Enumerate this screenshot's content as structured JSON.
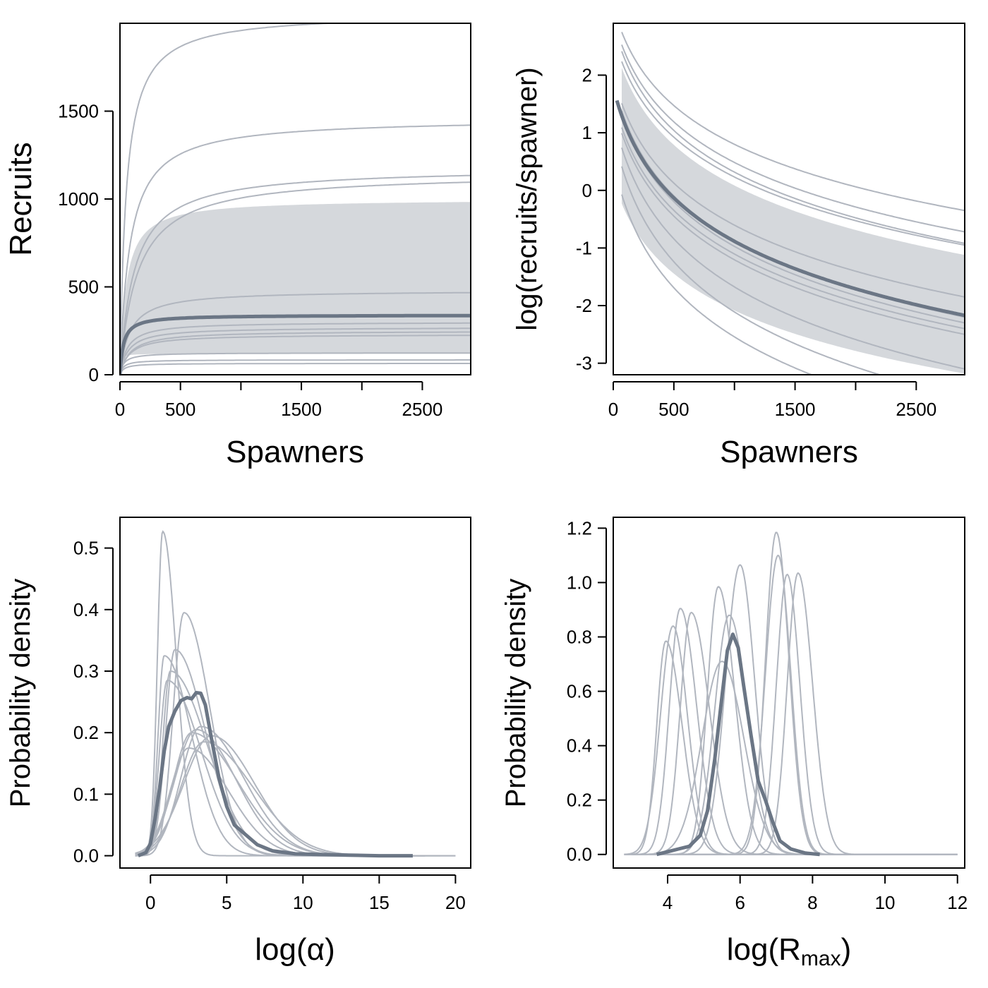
{
  "colors": {
    "posterior_median": "#6b7685",
    "population": "#b1b6bf",
    "credible_band": "#d5d8dc"
  },
  "chart_data": [
    {
      "id": "recruits",
      "type": "line",
      "xlabel": "Spawners",
      "ylabel": "Recruits",
      "xlim": [
        0,
        2900
      ],
      "ylim": [
        0,
        2000
      ],
      "xticks": [
        0,
        500,
        1000,
        1500,
        2000,
        2500
      ],
      "xtick_labels": [
        "0",
        "500",
        "",
        "1500",
        "",
        "2500"
      ],
      "yticks": [
        0,
        500,
        1000,
        1500
      ],
      "ytick_labels": [
        "0",
        "500",
        "1000",
        "1500"
      ],
      "model": "beverton-holt",
      "band": {
        "alpha": 20,
        "rmax": [
          120,
          1000
        ]
      },
      "median": {
        "alpha": 12,
        "rmax": 340
      },
      "populations": [
        {
          "alpha": 40,
          "rmax": 2060
        },
        {
          "alpha": 18,
          "rmax": 1460
        },
        {
          "alpha": 10,
          "rmax": 1180
        },
        {
          "alpha": 8,
          "rmax": 1150
        },
        {
          "alpha": 6,
          "rmax": 480
        },
        {
          "alpha": 5,
          "rmax": 300
        },
        {
          "alpha": 4,
          "rmax": 270
        },
        {
          "alpha": 3,
          "rmax": 250
        },
        {
          "alpha": 3,
          "rmax": 230
        },
        {
          "alpha": 4,
          "rmax": 125
        },
        {
          "alpha": 3,
          "rmax": 85
        },
        {
          "alpha": 2,
          "rmax": 65
        }
      ]
    },
    {
      "id": "log-rps",
      "type": "line",
      "xlabel": "Spawners",
      "ylabel": "log(recruits/spawner)",
      "xlim": [
        0,
        2900
      ],
      "ylim": [
        -3.2,
        2.9
      ],
      "xticks": [
        0,
        500,
        1000,
        1500,
        2000,
        2500
      ],
      "xtick_labels": [
        "0",
        "500",
        "",
        "1500",
        "",
        "2500"
      ],
      "yticks": [
        -3,
        -2,
        -1,
        0,
        1,
        2
      ],
      "ytick_labels": [
        "-3",
        "-2",
        "-1",
        "0",
        "1",
        "2"
      ],
      "band": {
        "start_s": 70,
        "upper": [
          2.6,
          -1.12
        ],
        "lower": [
          0.2,
          -3.18
        ]
      },
      "median": {
        "start_s": 30,
        "a": 1.8,
        "b": -2.17
      },
      "populations": [
        {
          "a": 3.2,
          "b": -0.35
        },
        {
          "a": 3.0,
          "b": -0.72
        },
        {
          "a": 2.9,
          "b": -0.92
        },
        {
          "a": 2.7,
          "b": -0.95
        },
        {
          "a": 2.0,
          "b": -1.85
        },
        {
          "a": 1.9,
          "b": -2.2
        },
        {
          "a": 1.8,
          "b": -2.3
        },
        {
          "a": 1.6,
          "b": -2.4
        },
        {
          "a": 1.5,
          "b": -2.5
        },
        {
          "a": 1.3,
          "b": -3.1
        },
        {
          "a": 1.0,
          "b": -3.6
        },
        {
          "a": 0.5,
          "b": -4.0
        }
      ]
    },
    {
      "id": "log-alpha-density",
      "type": "line",
      "xlabel": "log(α)",
      "ylabel": "Probability density",
      "xlim": [
        -2,
        21
      ],
      "ylim": [
        -0.02,
        0.55
      ],
      "xticks": [
        0,
        5,
        10,
        15,
        20
      ],
      "xtick_labels": [
        "0",
        "5",
        "10",
        "15",
        "20"
      ],
      "yticks": [
        0,
        0.1,
        0.2,
        0.3,
        0.4,
        0.5
      ],
      "ytick_labels": [
        "0.0",
        "0.1",
        "0.2",
        "0.3",
        "0.4",
        "0.5"
      ],
      "median": {
        "range": [
          -0.8,
          17.2
        ],
        "points": [
          [
            -0.8,
            0.0
          ],
          [
            -0.3,
            0.005
          ],
          [
            0.0,
            0.02
          ],
          [
            0.3,
            0.06
          ],
          [
            0.6,
            0.11
          ],
          [
            0.9,
            0.17
          ],
          [
            1.2,
            0.21
          ],
          [
            1.6,
            0.235
          ],
          [
            2.0,
            0.252
          ],
          [
            2.4,
            0.257
          ],
          [
            2.7,
            0.255
          ],
          [
            3.0,
            0.265
          ],
          [
            3.3,
            0.264
          ],
          [
            3.6,
            0.245
          ],
          [
            4.0,
            0.19
          ],
          [
            4.5,
            0.125
          ],
          [
            5.0,
            0.08
          ],
          [
            5.5,
            0.05
          ],
          [
            6.2,
            0.035
          ],
          [
            7.0,
            0.018
          ],
          [
            8.0,
            0.008
          ],
          [
            9.5,
            0.003
          ],
          [
            11.0,
            0.002
          ],
          [
            13.0,
            0.001
          ],
          [
            15.0,
            0.0
          ],
          [
            17.2,
            0.0
          ]
        ]
      },
      "populations": [
        {
          "range": [
            -1,
            15
          ],
          "peak": 0.8,
          "height": 0.527,
          "left": 0.35,
          "right": 0.9
        },
        {
          "range": [
            -1,
            16
          ],
          "peak": 2.2,
          "height": 0.395,
          "left": 0.7,
          "right": 1.7
        },
        {
          "range": [
            -1,
            16
          ],
          "peak": 0.9,
          "height": 0.325,
          "left": 0.4,
          "right": 1.8
        },
        {
          "range": [
            -1,
            16
          ],
          "peak": 1.6,
          "height": 0.335,
          "left": 0.6,
          "right": 2.0
        },
        {
          "range": [
            -1,
            16
          ],
          "peak": 1.3,
          "height": 0.3,
          "left": 0.5,
          "right": 2.4
        },
        {
          "range": [
            -1,
            16
          ],
          "peak": 1.1,
          "height": 0.285,
          "left": 0.5,
          "right": 2.2
        },
        {
          "range": [
            -1,
            18
          ],
          "peak": 3.3,
          "height": 0.21,
          "left": 1.3,
          "right": 2.8
        },
        {
          "range": [
            -1,
            18
          ],
          "peak": 3.0,
          "height": 0.205,
          "left": 1.4,
          "right": 2.6
        },
        {
          "range": [
            -1,
            18
          ],
          "peak": 2.7,
          "height": 0.2,
          "left": 1.2,
          "right": 3.0
        },
        {
          "range": [
            -1,
            19
          ],
          "peak": 3.5,
          "height": 0.185,
          "left": 1.5,
          "right": 3.2
        },
        {
          "range": [
            -1,
            20
          ],
          "peak": 2.5,
          "height": 0.175,
          "left": 1.2,
          "right": 2.6
        },
        {
          "range": [
            -1,
            20
          ],
          "peak": 4.0,
          "height": 0.195,
          "left": 1.8,
          "right": 2.8
        }
      ]
    },
    {
      "id": "log-rmax-density",
      "type": "line",
      "xlabel": "log(R",
      "xlabel_sub": "max",
      "xlabel_close": ")",
      "ylabel": "Probability density",
      "xlim": [
        2.5,
        12.2
      ],
      "ylim": [
        -0.05,
        1.24
      ],
      "xticks": [
        4,
        6,
        8,
        10,
        12
      ],
      "xtick_labels": [
        "4",
        "6",
        "8",
        "10",
        "12"
      ],
      "yticks": [
        0,
        0.2,
        0.4,
        0.6,
        0.8,
        1.0,
        1.2
      ],
      "ytick_labels": [
        "0.0",
        "0.2",
        "0.4",
        "0.6",
        "0.8",
        "1.0",
        "1.2"
      ],
      "median": {
        "range": [
          3.7,
          8.2
        ],
        "points": [
          [
            3.7,
            0.0
          ],
          [
            4.0,
            0.01
          ],
          [
            4.3,
            0.02
          ],
          [
            4.6,
            0.03
          ],
          [
            4.9,
            0.07
          ],
          [
            5.1,
            0.16
          ],
          [
            5.3,
            0.35
          ],
          [
            5.5,
            0.58
          ],
          [
            5.65,
            0.75
          ],
          [
            5.8,
            0.81
          ],
          [
            5.95,
            0.76
          ],
          [
            6.1,
            0.62
          ],
          [
            6.3,
            0.44
          ],
          [
            6.5,
            0.27
          ],
          [
            6.7,
            0.2
          ],
          [
            6.9,
            0.12
          ],
          [
            7.1,
            0.05
          ],
          [
            7.4,
            0.02
          ],
          [
            7.8,
            0.005
          ],
          [
            8.2,
            0.0
          ]
        ]
      },
      "populations": [
        {
          "range": [
            2.8,
            11.5
          ],
          "peak": 3.95,
          "height": 0.785,
          "left": 0.25,
          "right": 0.45
        },
        {
          "range": [
            2.8,
            11.5
          ],
          "peak": 4.15,
          "height": 0.84,
          "left": 0.35,
          "right": 0.4
        },
        {
          "range": [
            2.8,
            11.5
          ],
          "peak": 4.35,
          "height": 0.905,
          "left": 0.3,
          "right": 0.45
        },
        {
          "range": [
            2.8,
            11.5
          ],
          "peak": 4.65,
          "height": 0.89,
          "left": 0.3,
          "right": 0.5
        },
        {
          "range": [
            3.0,
            11.5
          ],
          "peak": 5.4,
          "height": 0.985,
          "left": 0.3,
          "right": 0.45
        },
        {
          "range": [
            3.0,
            11.5
          ],
          "peak": 5.7,
          "height": 0.88,
          "left": 0.4,
          "right": 0.5
        },
        {
          "range": [
            3.0,
            11.5
          ],
          "peak": 5.5,
          "height": 0.71,
          "left": 0.55,
          "right": 0.6
        },
        {
          "range": [
            3.5,
            11.5
          ],
          "peak": 6.0,
          "height": 1.065,
          "left": 0.4,
          "right": 0.4
        },
        {
          "range": [
            4.0,
            12.0
          ],
          "peak": 7.0,
          "height": 1.185,
          "left": 0.3,
          "right": 0.35
        },
        {
          "range": [
            4.0,
            12.0
          ],
          "peak": 7.05,
          "height": 1.1,
          "left": 0.35,
          "right": 0.35
        },
        {
          "range": [
            4.0,
            12.0
          ],
          "peak": 7.3,
          "height": 1.03,
          "left": 0.3,
          "right": 0.35
        },
        {
          "range": [
            4.0,
            12.0
          ],
          "peak": 7.6,
          "height": 1.035,
          "left": 0.3,
          "right": 0.4
        }
      ]
    }
  ]
}
